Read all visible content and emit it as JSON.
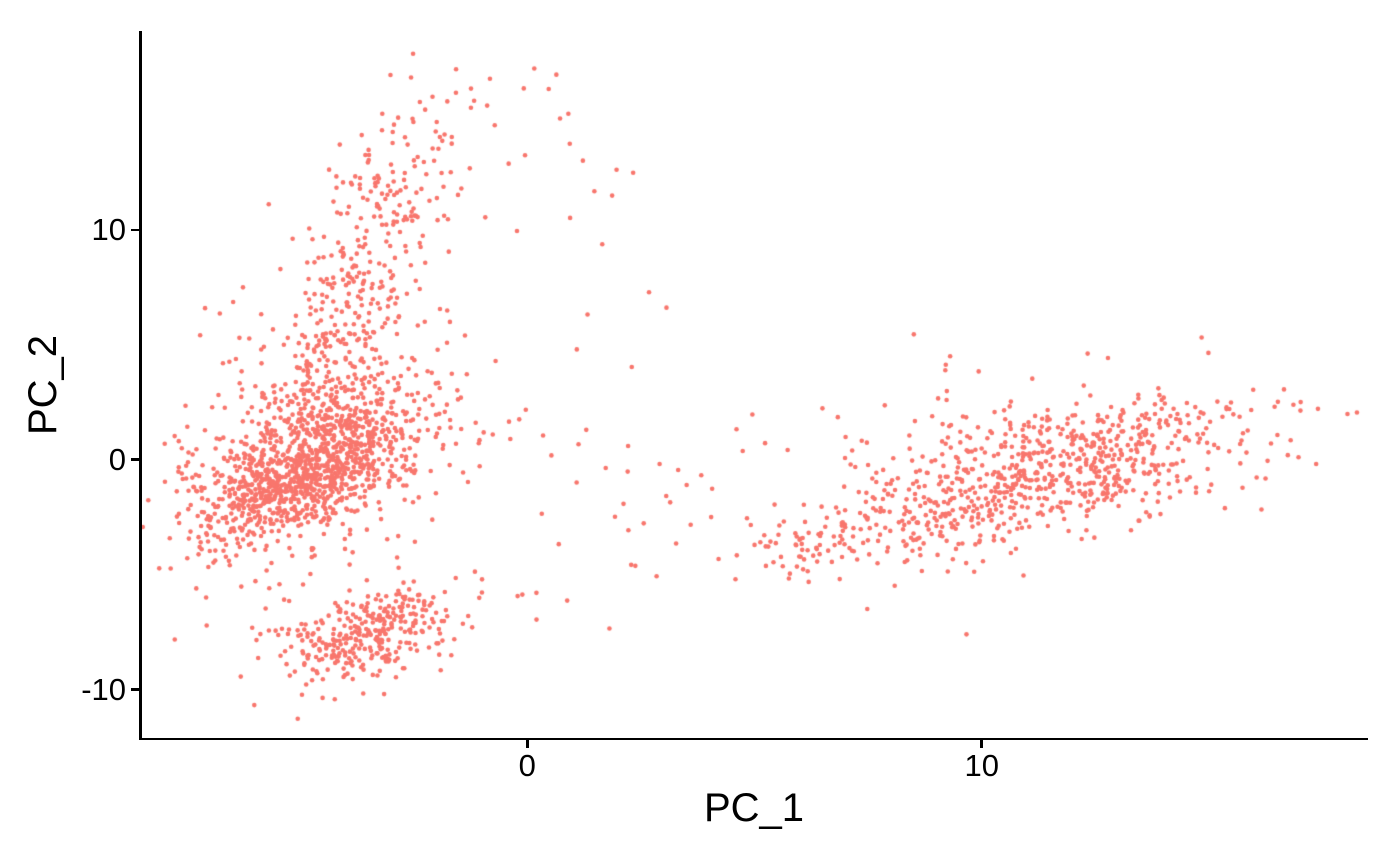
{
  "chart_data": {
    "type": "scatter",
    "title": "",
    "xlabel": "PC_1",
    "ylabel": "PC_2",
    "xlim": [
      -8.5,
      18.5
    ],
    "ylim": [
      -12.1,
      18.6
    ],
    "x_ticks": [
      0,
      10
    ],
    "y_ticks": [
      -10,
      0,
      10
    ],
    "grid": false,
    "legend_position": "none",
    "background_color": "#ffffff",
    "axis_color": "#000000",
    "point_color": "#F8766D",
    "point_radius_px": 2.3,
    "n_points_total": 3067,
    "seed": 7,
    "clusters": [
      {
        "name": "left-main-core",
        "type": "gauss",
        "n": 850,
        "mean": [
          -4.85,
          -0.4
        ],
        "sd": [
          1.1,
          1.55
        ],
        "corr": 0.6
      },
      {
        "name": "left-halo",
        "type": "gauss",
        "n": 480,
        "mean": [
          -4.6,
          0.3
        ],
        "sd": [
          1.6,
          2.6
        ],
        "corr": 0.35
      },
      {
        "name": "left-arm",
        "type": "band",
        "n": 400,
        "from": [
          -4.8,
          1.5
        ],
        "to": [
          -2.4,
          13.8
        ],
        "perp_sd": 0.55,
        "jitter": [
          0.45,
          1.3
        ],
        "t_pow": 1.15
      },
      {
        "name": "arm-tip",
        "type": "gauss",
        "n": 18,
        "mean": [
          -1.9,
          15.3
        ],
        "sd": [
          0.9,
          1.1
        ],
        "corr": 0
      },
      {
        "name": "top-outliers",
        "type": "uniform",
        "n": 8,
        "x": [
          -1.2,
          1.3
        ],
        "y": [
          14.5,
          17.5
        ]
      },
      {
        "name": "upper-left-outliers",
        "type": "uniform",
        "n": 6,
        "x": [
          -7.2,
          -5.8
        ],
        "y": [
          4.0,
          9.0
        ]
      },
      {
        "name": "left-edge-outliers",
        "type": "uniform",
        "n": 15,
        "x": [
          -8.2,
          -6.6
        ],
        "y": [
          -5.0,
          1.5
        ]
      },
      {
        "name": "bottom-cluster",
        "type": "gauss",
        "n": 330,
        "mean": [
          -3.35,
          -7.6
        ],
        "sd": [
          1.0,
          1.05
        ],
        "corr": 0.4
      },
      {
        "name": "bottom-left-trail",
        "type": "uniform",
        "n": 8,
        "x": [
          -6.6,
          -5.0
        ],
        "y": [
          -9.5,
          -6.0
        ]
      },
      {
        "name": "right-cluster",
        "type": "gauss",
        "n": 720,
        "mean": [
          11.6,
          -0.5
        ],
        "sd": [
          2.2,
          1.6
        ],
        "corr": 0.5
      },
      {
        "name": "right-lower-tail",
        "type": "band",
        "n": 130,
        "from": [
          5.2,
          -4.1
        ],
        "to": [
          9.8,
          -2.2
        ],
        "perp_sd": 0.75,
        "jitter": [
          0.4,
          0.5
        ],
        "t_pow": 0.9
      },
      {
        "name": "right-upper-halo",
        "type": "gauss",
        "n": 40,
        "mean": [
          11.3,
          2.4
        ],
        "sd": [
          2.3,
          1.1
        ],
        "corr": 0.2
      },
      {
        "name": "middle-scatter",
        "type": "uniform",
        "n": 40,
        "x": [
          -1.2,
          5.8
        ],
        "y": [
          -5.3,
          2.0
        ]
      },
      {
        "name": "middle-low-scatter",
        "type": "uniform",
        "n": 6,
        "x": [
          -0.5,
          3.0
        ],
        "y": [
          -7.5,
          -5.5
        ]
      },
      {
        "name": "top-middle-scatter",
        "type": "uniform",
        "n": 10,
        "x": [
          0.8,
          3.2
        ],
        "y": [
          4.0,
          14.0
        ]
      },
      {
        "name": "mid-high-scatter",
        "type": "uniform",
        "n": 6,
        "x": [
          -0.5,
          1.5
        ],
        "y": [
          8.0,
          13.5
        ]
      }
    ]
  }
}
